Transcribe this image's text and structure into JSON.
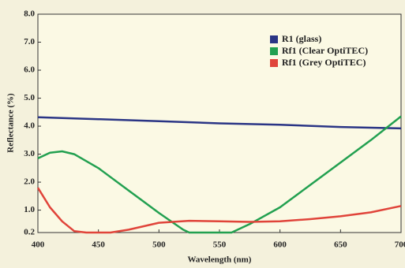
{
  "chart_data": {
    "type": "line",
    "xlabel": "Wavelength (nm)",
    "ylabel": "Reflectance (%)",
    "xlim": [
      400,
      700
    ],
    "xticks": [
      400,
      450,
      500,
      550,
      600,
      650,
      700
    ],
    "ylim": [
      0.2,
      8.0
    ],
    "yticks": [
      0.2,
      {
        "value": 1,
        "label": "1.0"
      },
      {
        "value": 2,
        "label": "2.0"
      },
      {
        "value": 3,
        "label": "3.0"
      },
      {
        "value": 4,
        "label": "4.0"
      },
      {
        "value": 5,
        "label": "5.0"
      },
      {
        "value": 6,
        "label": "6.0"
      },
      {
        "value": 7,
        "label": "7.0"
      },
      {
        "value": 8,
        "label": "8.0"
      }
    ],
    "legend": "upper right",
    "series": [
      {
        "name": "R1 (glass)",
        "color": "#2a3585",
        "x": [
          400,
          450,
          500,
          550,
          600,
          650,
          700
        ],
        "values": [
          4.32,
          4.25,
          4.18,
          4.1,
          4.05,
          3.97,
          3.92
        ]
      },
      {
        "name": "Rf1 (Clear OptiTEC)",
        "color": "#22a050",
        "x": [
          400,
          410,
          420,
          430,
          450,
          475,
          500,
          520,
          525,
          550,
          560,
          575,
          600,
          625,
          650,
          675,
          700
        ],
        "values": [
          2.85,
          3.05,
          3.1,
          3.0,
          2.5,
          1.7,
          0.9,
          0.3,
          0.2,
          0.2,
          0.2,
          0.5,
          1.1,
          1.9,
          2.7,
          3.5,
          4.35
        ]
      },
      {
        "name": "Rf1 (Grey OptiTEC)",
        "color": "#e0443a",
        "x": [
          400,
          410,
          420,
          430,
          440,
          460,
          475,
          500,
          525,
          550,
          575,
          600,
          625,
          650,
          675,
          700
        ],
        "values": [
          1.8,
          1.1,
          0.6,
          0.25,
          0.2,
          0.2,
          0.3,
          0.55,
          0.62,
          0.6,
          0.58,
          0.6,
          0.68,
          0.78,
          0.92,
          1.15
        ]
      }
    ]
  }
}
